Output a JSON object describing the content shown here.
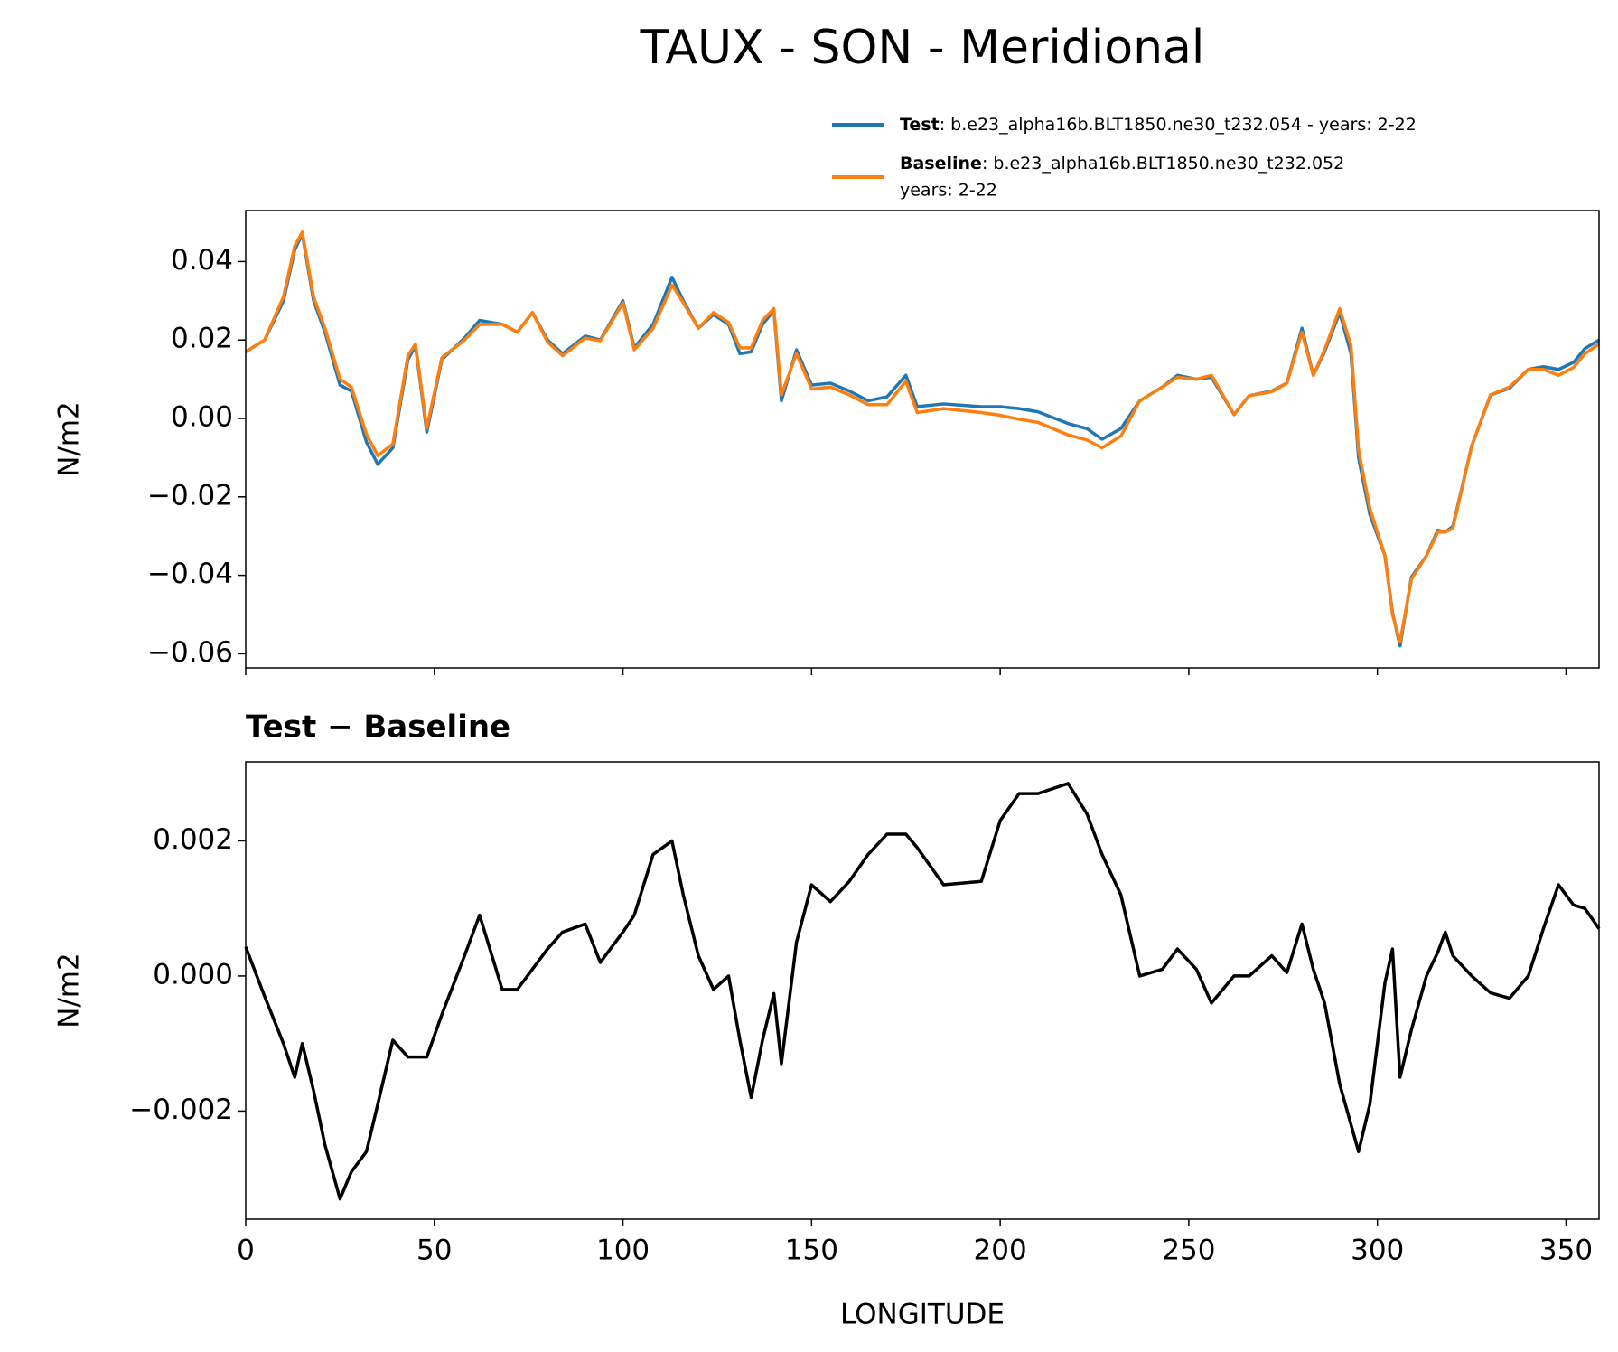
{
  "chart_data": [
    {
      "type": "line",
      "title": "TAUX - SON - Meridional",
      "ylabel": "N/m2",
      "xlim": [
        0,
        358.75
      ],
      "xticks": [
        0,
        50,
        100,
        150,
        200,
        250,
        300,
        350
      ],
      "show_xtick_labels": false,
      "ylim": [
        -0.0636,
        0.053
      ],
      "yticks": [
        {
          "value": -0.06,
          "label": "−0.06"
        },
        {
          "value": -0.04,
          "label": "−0.04"
        },
        {
          "value": -0.02,
          "label": "−0.02"
        },
        {
          "value": 0,
          "label": "0.00"
        },
        0.02,
        0.04
      ],
      "x": [
        0,
        5,
        10,
        13,
        15,
        18,
        21,
        25,
        28,
        32,
        35,
        39,
        43,
        45,
        48,
        52,
        58,
        62,
        68,
        72,
        76,
        80,
        84,
        90,
        94,
        100,
        103,
        108,
        113,
        116,
        120,
        124,
        128,
        131,
        134,
        137,
        140,
        142,
        146,
        150,
        155,
        160,
        165,
        170,
        175,
        178,
        185,
        195,
        200,
        205,
        210,
        218,
        223,
        227,
        232,
        237,
        243,
        247,
        252,
        256,
        262,
        266,
        272,
        276,
        280,
        283,
        286,
        290,
        293,
        295,
        298,
        302,
        304,
        306,
        309,
        313,
        316,
        318,
        320,
        325,
        330,
        335,
        340,
        344,
        348,
        352,
        355,
        358.75
      ],
      "series": [
        {
          "name": "Test",
          "description": [
            ": b.e23_alpha16b.BLT1850.ne30_t232.054 - years: 2-22"
          ],
          "color": "#1f77b4",
          "values": [
            0.017,
            0.02,
            0.03,
            0.043,
            0.047,
            0.03,
            0.022,
            0.0085,
            0.007,
            -0.006,
            -0.0117,
            -0.0075,
            0.015,
            0.0185,
            -0.0035,
            0.015,
            0.0205,
            0.025,
            0.024,
            0.022,
            0.027,
            0.02,
            0.0165,
            0.021,
            0.02,
            0.03,
            0.018,
            0.024,
            0.036,
            0.03,
            0.023,
            0.0265,
            0.024,
            0.0165,
            0.017,
            0.024,
            0.0275,
            0.0045,
            0.0175,
            0.0085,
            0.009,
            0.007,
            0.0045,
            0.0055,
            0.011,
            0.003,
            0.0037,
            0.003,
            0.003,
            0.0025,
            0.0017,
            -0.0013,
            -0.0026,
            -0.0053,
            -0.0026,
            0.0045,
            0.008,
            0.011,
            0.01,
            0.0105,
            0.001,
            0.0058,
            0.007,
            0.009,
            0.023,
            0.011,
            0.017,
            0.027,
            0.0165,
            -0.01,
            -0.0245,
            -0.035,
            -0.0495,
            -0.058,
            -0.0405,
            -0.035,
            -0.0285,
            -0.029,
            -0.0275,
            -0.007,
            0.006,
            0.0077,
            0.0125,
            0.0132,
            0.0125,
            0.0143,
            0.0178,
            0.02
          ]
        },
        {
          "name": "Baseline",
          "description": [
            ": b.e23_alpha16b.BLT1850.ne30_t232.052",
            "years: 2-22"
          ],
          "color": "#ff7f0e",
          "values": [
            0.017,
            0.02,
            0.031,
            0.044,
            0.0475,
            0.031,
            0.023,
            0.01,
            0.008,
            -0.004,
            -0.0095,
            -0.0065,
            0.016,
            0.019,
            -0.0025,
            0.0155,
            0.02,
            0.024,
            0.024,
            0.022,
            0.027,
            0.0195,
            0.016,
            0.0205,
            0.0198,
            0.0295,
            0.0175,
            0.023,
            0.034,
            0.0295,
            0.023,
            0.027,
            0.0245,
            0.018,
            0.018,
            0.025,
            0.028,
            0.006,
            0.0165,
            0.0075,
            0.008,
            0.006,
            0.0035,
            0.0035,
            0.0095,
            0.0015,
            0.0025,
            0.0015,
            0.0008,
            -0.0002,
            -0.001,
            -0.0042,
            -0.0055,
            -0.0075,
            -0.0045,
            0.0045,
            0.008,
            0.0105,
            0.01,
            0.011,
            0.001,
            0.0058,
            0.0068,
            0.009,
            0.022,
            0.011,
            0.0175,
            0.028,
            0.0185,
            -0.008,
            -0.023,
            -0.035,
            -0.05,
            -0.057,
            -0.041,
            -0.035,
            -0.029,
            -0.029,
            -0.028,
            -0.007,
            0.006,
            0.008,
            0.0125,
            0.0125,
            0.011,
            0.013,
            0.0165,
            0.019
          ]
        }
      ]
    },
    {
      "type": "line",
      "title": "Test − Baseline",
      "xlabel": "LONGITUDE",
      "ylabel": "N/m2",
      "xlim": [
        0,
        358.75
      ],
      "xticks": [
        0,
        50,
        100,
        150,
        200,
        250,
        300,
        350
      ],
      "show_xtick_labels": true,
      "ylim": [
        -0.0036,
        0.00317
      ],
      "yticks": [
        {
          "value": -0.002,
          "label": "−0.002"
        },
        {
          "value": 0,
          "label": "0.000"
        },
        0.002
      ],
      "x": [
        0,
        5,
        10,
        13,
        15,
        18,
        21,
        25,
        28,
        32,
        35,
        39,
        43,
        45,
        48,
        52,
        58,
        62,
        68,
        72,
        76,
        80,
        84,
        90,
        94,
        100,
        103,
        108,
        113,
        116,
        120,
        124,
        128,
        131,
        134,
        137,
        140,
        142,
        146,
        150,
        155,
        160,
        165,
        170,
        175,
        178,
        185,
        195,
        200,
        205,
        210,
        218,
        223,
        227,
        232,
        237,
        243,
        247,
        252,
        256,
        262,
        266,
        272,
        276,
        280,
        283,
        286,
        290,
        293,
        295,
        298,
        302,
        304,
        306,
        309,
        313,
        316,
        318,
        320,
        325,
        330,
        335,
        340,
        344,
        348,
        352,
        355,
        358.75
      ],
      "series": [
        {
          "color": "#000000",
          "values": [
            0.00043,
            -0.0003,
            -0.001,
            -0.0015,
            -0.001,
            -0.0017,
            -0.0025,
            -0.0033,
            -0.0029,
            -0.0026,
            -0.0019,
            -0.00095,
            -0.0012,
            -0.0012,
            -0.0012,
            -0.00057,
            0.0003,
            0.0009,
            -0.0002,
            -0.0002,
            0.0001,
            0.0004,
            0.00065,
            0.00077,
            0.0002,
            0.00065,
            0.0009,
            0.0018,
            0.002,
            0.0012,
            0.0003,
            -0.0002,
            0.0,
            -0.00095,
            -0.0018,
            -0.00095,
            -0.00026,
            -0.0013,
            0.0005,
            0.00135,
            0.0011,
            0.0014,
            0.0018,
            0.0021,
            0.0021,
            0.0019,
            0.00135,
            0.0014,
            0.0023,
            0.0027,
            0.0027,
            0.00285,
            0.0024,
            0.0018,
            0.0012,
            0.0,
            0.0001,
            0.0004,
            0.0001,
            -0.0004,
            0.0,
            0.0,
            0.0003,
            5e-05,
            0.00077,
            0.0001,
            -0.0004,
            -0.0016,
            -0.0022,
            -0.0026,
            -0.0019,
            -0.0001,
            0.0004,
            -0.0015,
            -0.0008,
            0.0,
            0.00035,
            0.00065,
            0.0003,
            0.0,
            -0.00025,
            -0.00033,
            0.0,
            0.0007,
            0.00135,
            0.00105,
            0.001,
            0.0007
          ]
        }
      ]
    }
  ]
}
